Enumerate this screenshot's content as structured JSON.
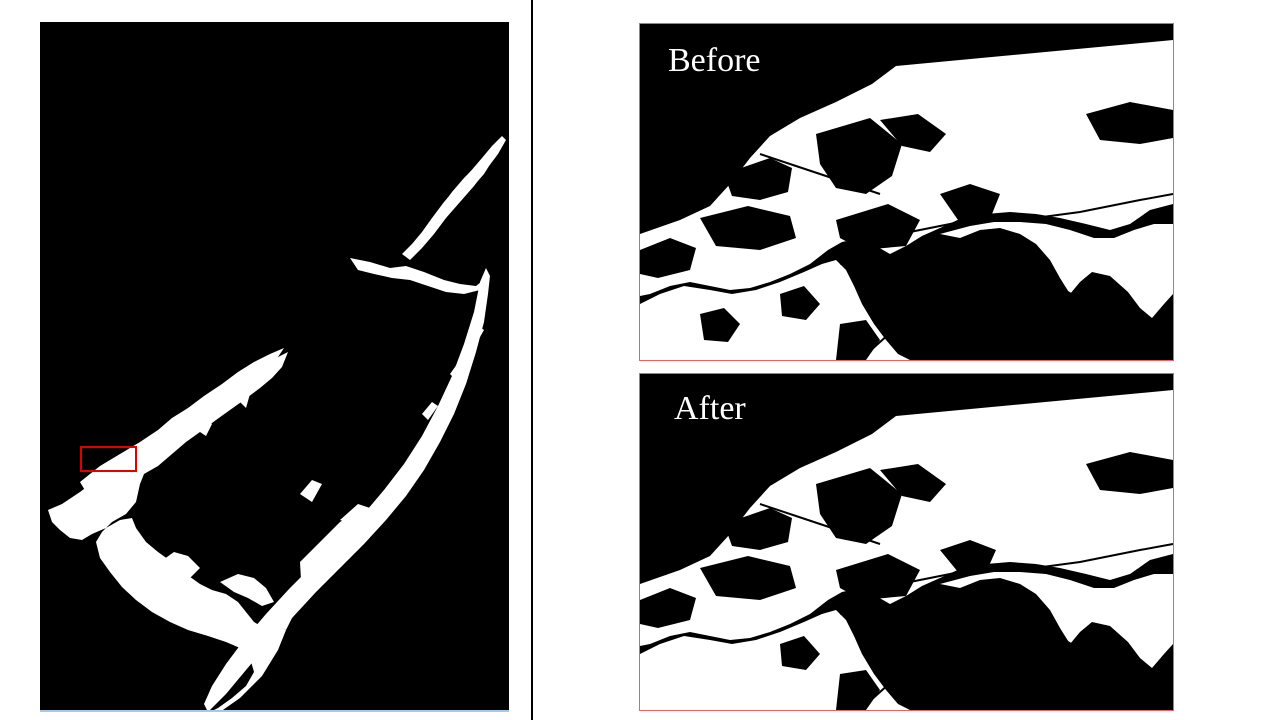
{
  "overview": {
    "region_type": "coastline land/water mask",
    "highlight_color": "#e00000"
  },
  "panels": {
    "before": {
      "label": "Before"
    },
    "after": {
      "label": "After"
    }
  },
  "colors": {
    "land": "#ffffff",
    "water": "#000000",
    "panel_border": "#e06666",
    "divider": "#000000"
  }
}
